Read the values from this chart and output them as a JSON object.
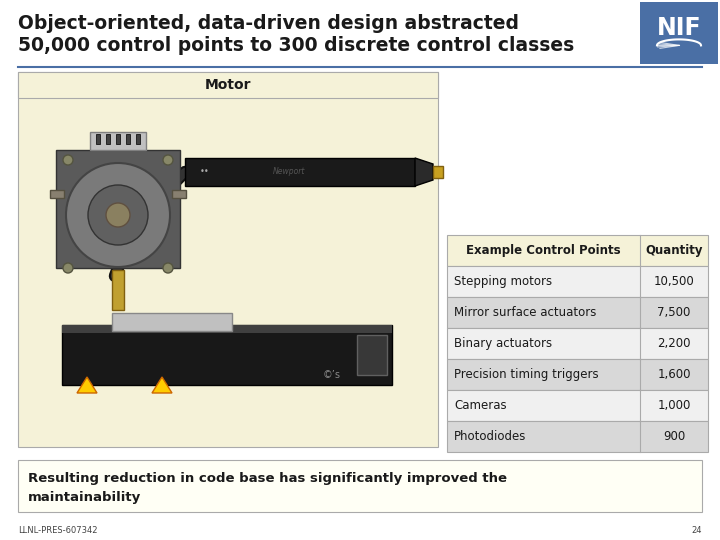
{
  "title_line1": "Object-oriented, data-driven design abstracted",
  "title_line2": "50,000 control points to 300 discrete control classes",
  "bg_color": "#ffffff",
  "title_color": "#1a1a1a",
  "motor_label": "Motor",
  "motor_box_color": "#f5f2d8",
  "motor_box_border": "#aaaaaa",
  "table_header": [
    "Example Control Points",
    "Quantity"
  ],
  "table_rows": [
    [
      "Stepping motors",
      "10,500"
    ],
    [
      "Mirror surface actuators",
      "7,500"
    ],
    [
      "Binary actuators",
      "2,200"
    ],
    [
      "Precision timing triggers",
      "1,600"
    ],
    [
      "Cameras",
      "1,000"
    ],
    [
      "Photodiodes",
      "900"
    ]
  ],
  "table_header_bg": "#f5f2d8",
  "table_row_bg1": "#f0f0f0",
  "table_row_bg2": "#d8d8d8",
  "table_border_color": "#aaaaaa",
  "footer_text1": "Resulting reduction in code base has significantly improved the",
  "footer_text2": "maintainability",
  "footer_bg": "#fffff5",
  "footer_border": "#aaaaaa",
  "nif_box_color": "#4a6fa5",
  "slide_number": "24",
  "doc_number": "LLNL-PRES-607342",
  "divider_color": "#4a6fa5",
  "title_font_size": 13.5,
  "motor_font_size": 10,
  "table_font_size": 8.5,
  "footer_font_size": 9.5,
  "small_font_size": 6
}
